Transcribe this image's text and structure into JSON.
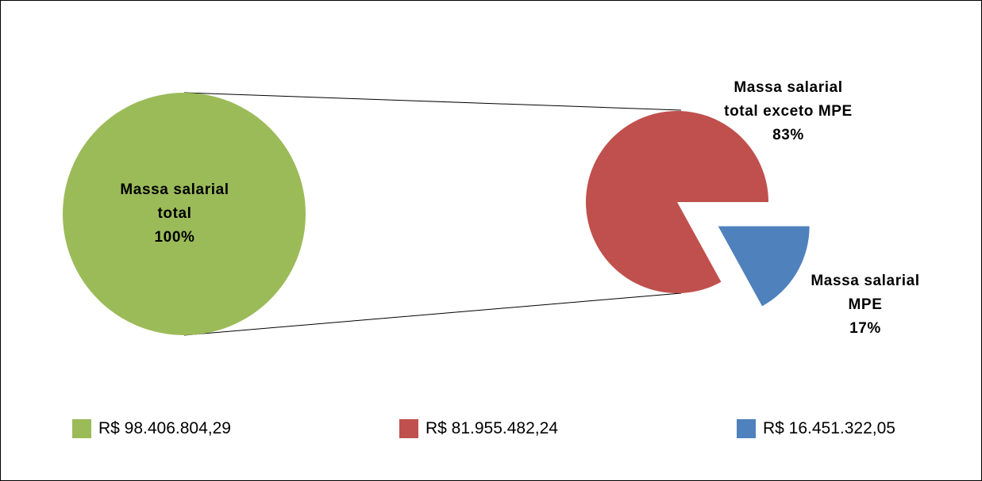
{
  "chart_data": [
    {
      "type": "pie",
      "categories": [
        "Massa salarial total"
      ],
      "values": [
        100
      ],
      "value_labels": [
        "100%"
      ],
      "legend": [
        "R$ 98.406.804,29"
      ],
      "colors": [
        "#9bbb59"
      ]
    },
    {
      "type": "pie",
      "categories": [
        "Massa salarial total exceto MPE",
        "Massa salarial MPE"
      ],
      "values": [
        83,
        17
      ],
      "value_labels": [
        "83%",
        "17%"
      ],
      "legend": [
        "R$ 81.955.482,24",
        "R$ 16.451.322,05"
      ],
      "colors": [
        "#c0504d",
        "#4f81bd"
      ],
      "explode_last": true
    }
  ]
}
